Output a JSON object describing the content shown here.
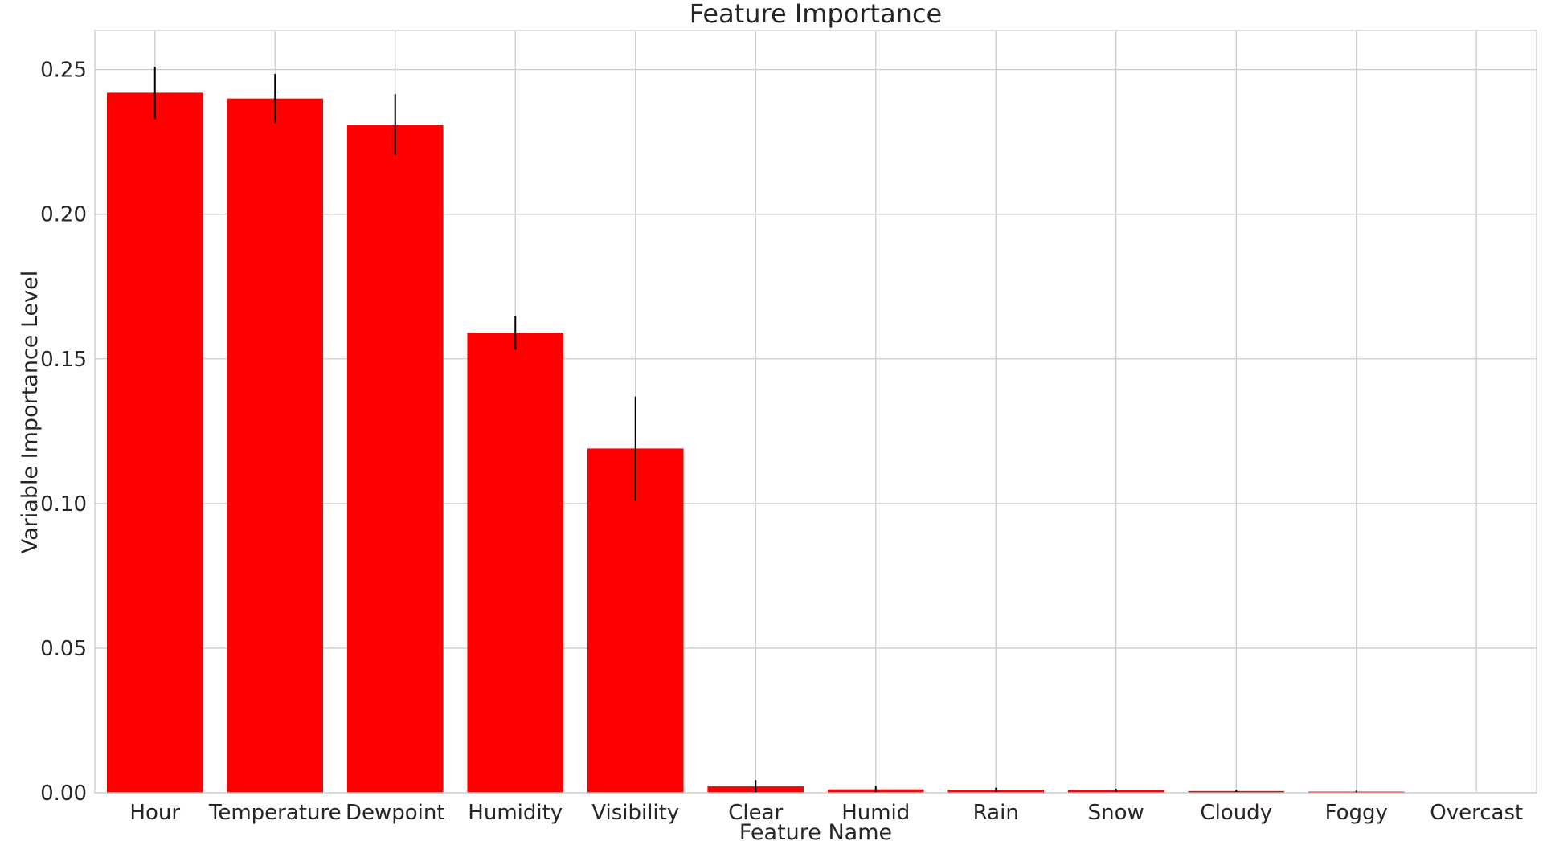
{
  "chart_data": {
    "type": "bar",
    "title": "Feature Importance",
    "xlabel": "Feature Name",
    "ylabel": "Variable Importance Level",
    "categories": [
      "Hour",
      "Temperature",
      "Dewpoint",
      "Humidity",
      "Visibility",
      "Clear",
      "Humid",
      "Rain",
      "Snow",
      "Cloudy",
      "Foggy",
      "Overcast"
    ],
    "values": [
      0.242,
      0.24,
      0.231,
      0.159,
      0.119,
      0.0022,
      0.0012,
      0.0011,
      0.0009,
      0.0006,
      0.0004,
      0.0
    ],
    "errors": [
      0.009,
      0.0085,
      0.0105,
      0.0058,
      0.018,
      0.0022,
      0.0012,
      0.0007,
      0.0005,
      0.0004,
      0.0003,
      0.0
    ],
    "ylim": [
      0,
      0.2635
    ],
    "yticks": [
      0.0,
      0.05,
      0.1,
      0.15,
      0.2,
      0.25
    ],
    "ytick_labels": [
      "0.00",
      "0.05",
      "0.10",
      "0.15",
      "0.20",
      "0.25"
    ],
    "grid": true,
    "bar_color": "#ff0000",
    "error_color": "#000000",
    "grid_color": "#cccccc"
  }
}
